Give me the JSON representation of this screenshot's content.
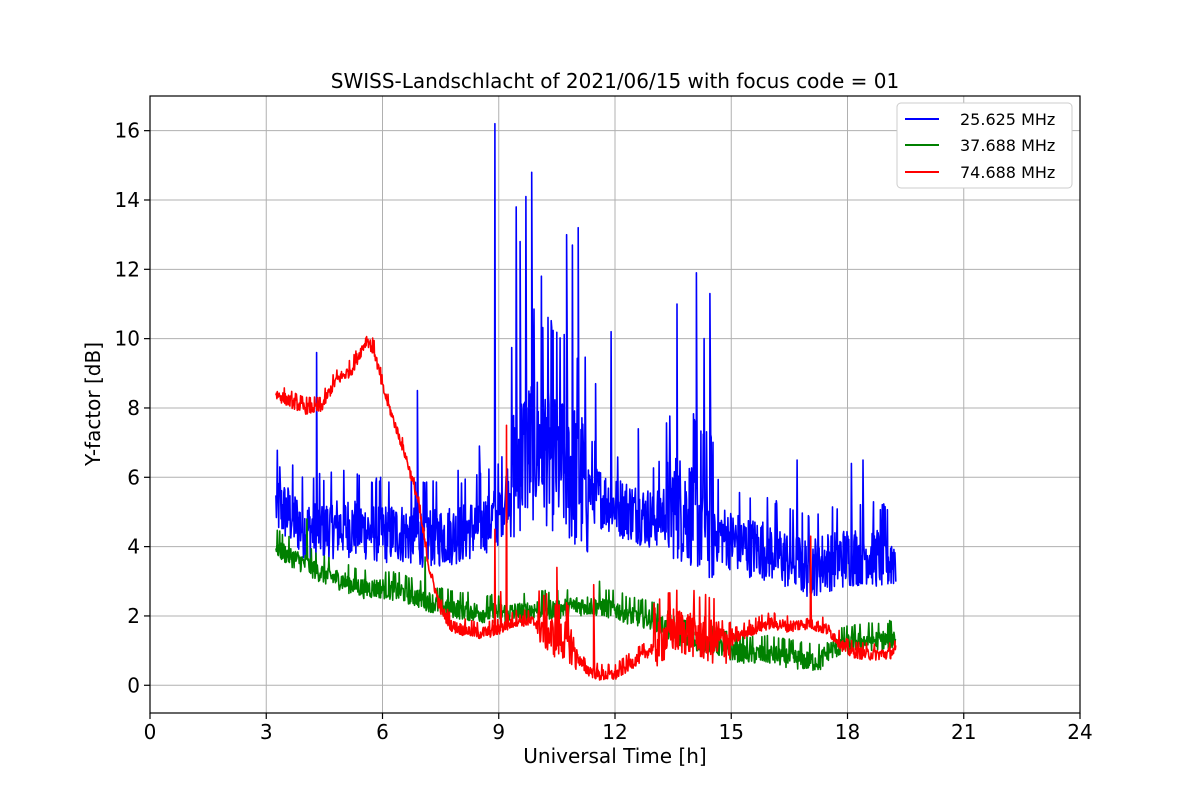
{
  "chart_data": {
    "type": "line",
    "title": "SWISS-Landschlacht of 2021/06/15 with focus code = 01",
    "xlabel": "Universal Time [h]",
    "ylabel": "Y-factor [dB]",
    "xlim": [
      0,
      24
    ],
    "ylim": [
      -0.8,
      17
    ],
    "xticks": [
      0,
      3,
      6,
      9,
      12,
      15,
      18,
      21,
      24
    ],
    "yticks": [
      0,
      2,
      4,
      6,
      8,
      10,
      12,
      14,
      16
    ],
    "grid": true,
    "legend_position": "top-right",
    "series": [
      {
        "name": "25.625 MHz",
        "color": "#0000ff",
        "x": [
          3.25,
          3.5,
          4.0,
          4.5,
          5.0,
          5.5,
          6.0,
          6.5,
          7.0,
          7.5,
          8.0,
          8.5,
          9.0,
          9.5,
          10.0,
          10.5,
          11.0,
          11.5,
          12.0,
          12.5,
          13.0,
          13.5,
          14.0,
          14.5,
          15.0,
          15.5,
          16.0,
          16.5,
          17.0,
          17.5,
          18.0,
          18.5,
          19.0,
          19.25
        ],
        "y": [
          5.2,
          5.0,
          4.5,
          4.5,
          4.6,
          4.5,
          4.4,
          4.4,
          4.3,
          4.3,
          4.4,
          4.6,
          4.9,
          6.5,
          7.0,
          6.5,
          6.0,
          5.5,
          5.2,
          5.0,
          4.8,
          5.2,
          5.0,
          4.5,
          4.2,
          4.0,
          3.9,
          3.6,
          3.4,
          3.6,
          3.7,
          3.8,
          3.6,
          3.7
        ],
        "spikes": [
          [
            4.3,
            9.6
          ],
          [
            3.35,
            6.3
          ],
          [
            5.0,
            6.2
          ],
          [
            6.9,
            8.5
          ],
          [
            8.9,
            16.2
          ],
          [
            9.45,
            13.8
          ],
          [
            9.85,
            14.8
          ],
          [
            9.7,
            14.1
          ],
          [
            9.55,
            12.8
          ],
          [
            10.1,
            11.8
          ],
          [
            10.75,
            13.0
          ],
          [
            11.05,
            13.2
          ],
          [
            10.9,
            12.7
          ],
          [
            11.5,
            8.7
          ],
          [
            11.9,
            10.2
          ],
          [
            12.6,
            7.4
          ],
          [
            13.6,
            11.0
          ],
          [
            14.1,
            11.9
          ],
          [
            14.45,
            11.3
          ],
          [
            14.3,
            10.0
          ],
          [
            16.7,
            6.5
          ],
          [
            18.1,
            6.4
          ],
          [
            18.4,
            6.5
          ],
          [
            7.95,
            6.2
          ],
          [
            8.5,
            6.9
          ]
        ]
      },
      {
        "name": "37.688 MHz",
        "color": "#008000",
        "x": [
          3.25,
          3.5,
          4.0,
          4.5,
          5.0,
          5.5,
          6.0,
          6.5,
          7.0,
          7.5,
          8.0,
          8.5,
          9.0,
          9.5,
          10.0,
          10.5,
          11.0,
          11.5,
          12.0,
          12.5,
          13.0,
          13.5,
          14.0,
          14.5,
          15.0,
          15.5,
          16.0,
          16.5,
          17.0,
          17.3,
          17.5,
          18.0,
          18.5,
          19.0,
          19.25
        ],
        "y": [
          4.0,
          3.8,
          3.5,
          3.2,
          3.0,
          2.8,
          2.8,
          2.7,
          2.5,
          2.3,
          2.2,
          2.1,
          2.1,
          2.1,
          2.2,
          2.2,
          2.3,
          2.3,
          2.2,
          2.0,
          1.9,
          1.5,
          1.3,
          1.2,
          1.0,
          0.9,
          0.9,
          0.8,
          0.7,
          0.7,
          1.0,
          1.2,
          1.3,
          1.3,
          1.4
        ],
        "spikes": [
          [
            4.05,
            4.8
          ],
          [
            11.6,
            3.0
          ],
          [
            7.1,
            3.7
          ]
        ]
      },
      {
        "name": "74.688 MHz",
        "color": "#ff0000",
        "x": [
          3.25,
          3.6,
          4.0,
          4.4,
          4.8,
          5.2,
          5.6,
          5.8,
          6.0,
          6.3,
          6.6,
          6.9,
          7.2,
          7.5,
          7.8,
          8.1,
          8.5,
          9.0,
          9.5,
          10.0,
          10.4,
          10.8,
          11.2,
          11.6,
          12.0,
          12.5,
          13.0,
          13.5,
          14.0,
          14.5,
          15.0,
          15.5,
          16.0,
          16.5,
          17.0,
          17.5,
          18.0,
          18.5,
          19.0,
          19.25
        ],
        "y": [
          8.4,
          8.2,
          8.0,
          8.0,
          8.8,
          9.1,
          10.0,
          9.6,
          8.6,
          7.6,
          6.6,
          5.4,
          3.4,
          2.2,
          1.7,
          1.6,
          1.5,
          1.6,
          1.9,
          1.8,
          1.4,
          1.3,
          0.5,
          0.3,
          0.3,
          0.7,
          1.1,
          1.6,
          1.5,
          1.3,
          1.3,
          1.6,
          1.8,
          1.7,
          1.8,
          1.6,
          1.0,
          0.9,
          0.9,
          1.0
        ],
        "spikes": [
          [
            9.2,
            7.5
          ],
          [
            8.9,
            4.5
          ],
          [
            9.05,
            2.7
          ],
          [
            10.5,
            3.4
          ],
          [
            11.45,
            2.9
          ],
          [
            17.05,
            4.3
          ]
        ]
      }
    ]
  }
}
